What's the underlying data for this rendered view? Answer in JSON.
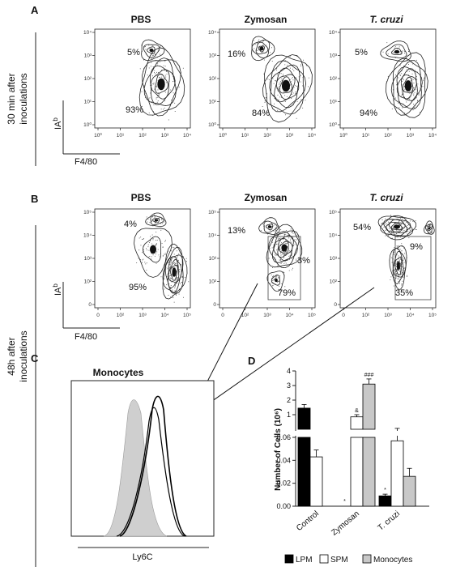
{
  "figure": {
    "panel_a_label": "A",
    "panel_b_label": "B",
    "panel_c_label": "C",
    "panel_d_label": "D",
    "row_a_side_label_1": "30 min after",
    "row_a_side_label_2": "inoculations",
    "row_bc_side_label_1": "48h after",
    "row_bc_side_label_2": "inoculations",
    "y_marker_label": "IA",
    "y_marker_sup": "b",
    "x_marker_label": "F4/80"
  },
  "panel_a": {
    "plots": [
      {
        "title": "PBS",
        "title_italic": false,
        "pct_top": "5%",
        "pct_bottom": "93%"
      },
      {
        "title": "Zymosan",
        "title_italic": false,
        "pct_top": "16%",
        "pct_bottom": "84%"
      },
      {
        "title": "T. cruzi",
        "title_italic": true,
        "pct_top": "5%",
        "pct_bottom": "94%"
      }
    ],
    "x_ticks": [
      "10⁰",
      "10¹",
      "10²",
      "10³",
      "10⁴"
    ],
    "y_ticks": [
      "10⁰",
      "10¹",
      "10²",
      "10³",
      "10⁴"
    ]
  },
  "panel_b": {
    "plots": [
      {
        "title": "PBS",
        "title_italic": false,
        "pct_top": "4%",
        "pct_bottom": "95%",
        "pct_right": ""
      },
      {
        "title": "Zymosan",
        "title_italic": false,
        "pct_top": "13%",
        "pct_bottom": "79%",
        "pct_right": "3%"
      },
      {
        "title": "T. cruzi",
        "title_italic": true,
        "pct_top": "54%",
        "pct_bottom": "35%",
        "pct_right": "9%"
      }
    ],
    "x_ticks": [
      "0",
      "10²",
      "10³",
      "10⁴",
      "10⁵"
    ],
    "y_ticks": [
      "0",
      "10²",
      "10³",
      "10⁴",
      "10⁵"
    ]
  },
  "panel_c": {
    "title": "Monocytes",
    "xlabel": "Ly6C"
  },
  "chart_data": {
    "type": "bar",
    "categories": [
      "Control",
      "Zymosan",
      "T. cruzi"
    ],
    "ylabel": "Number of Cells (10⁶)",
    "y_scale": "broken",
    "lower_segment_ticks": [
      "0.00",
      "0.02",
      "0.04",
      "0.06"
    ],
    "upper_segment_ticks": [
      "1",
      "2",
      "3",
      "4"
    ],
    "series": [
      {
        "name": "LPM",
        "color": "#000000",
        "values": [
          1.45,
          0.0,
          0.009
        ],
        "errors": [
          0.25,
          0.0,
          0.0015
        ]
      },
      {
        "name": "SPM",
        "color": "#ffffff",
        "values": [
          0.043,
          0.85,
          0.057
        ],
        "errors": [
          0.006,
          0.15,
          0.003
        ]
      },
      {
        "name": "Monocytes",
        "color": "#c8c8c8",
        "values": [
          0.0,
          3.1,
          0.026
        ],
        "errors": [
          0.0,
          0.35,
          0.007
        ]
      }
    ],
    "annotations": [
      {
        "category": "Zymosan",
        "series": "LPM",
        "text": "*"
      },
      {
        "category": "Zymosan",
        "series": "SPM",
        "text": "&"
      },
      {
        "category": "Zymosan",
        "series": "Monocytes",
        "text": "###"
      },
      {
        "category": "T. cruzi",
        "series": "LPM",
        "text": "*"
      }
    ]
  }
}
